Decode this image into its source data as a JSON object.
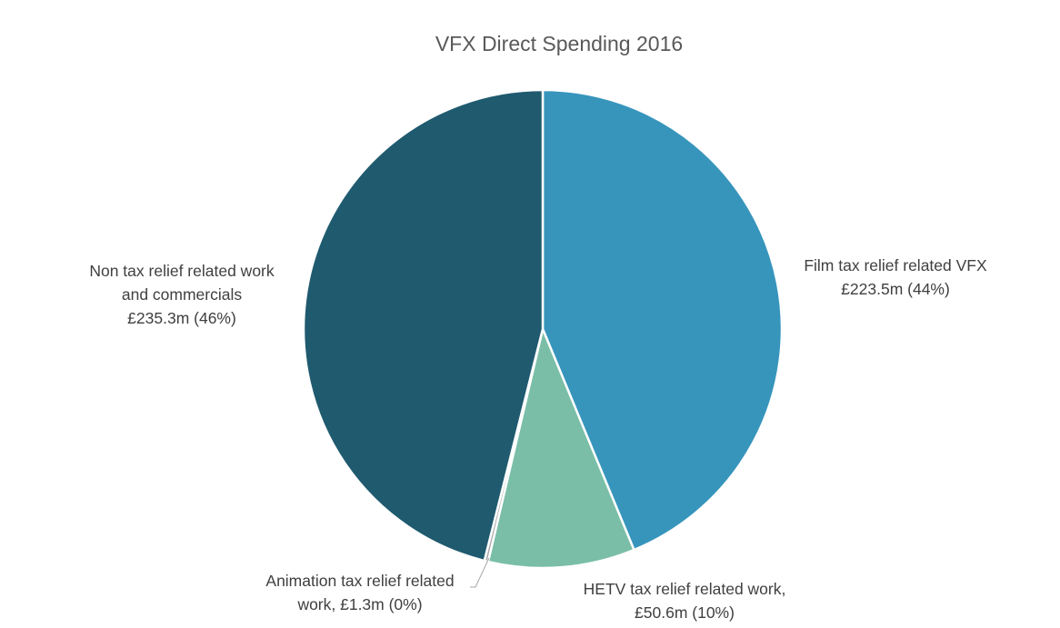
{
  "chart_data": {
    "type": "pie",
    "title": "VFX Direct Spending 2016",
    "slices": [
      {
        "name": "Film tax relief related VFX",
        "value": 223.5,
        "percent": 44,
        "label_lines": [
          "Film tax relief related VFX",
          "£223.5m (44%)"
        ],
        "color": "#3795bc"
      },
      {
        "name": "HETV tax relief related work",
        "value": 50.6,
        "percent": 10,
        "label_lines": [
          "HETV tax relief related work,",
          "£50.6m (10%)"
        ],
        "color": "#7abea8"
      },
      {
        "name": "Animation tax relief related work",
        "value": 1.3,
        "percent": 0,
        "label_lines": [
          "Animation tax relief related",
          "work, £1.3m (0%)"
        ],
        "color": "#a6a6a6"
      },
      {
        "name": "Non tax relief related work and commercials",
        "value": 235.3,
        "percent": 46,
        "label_lines": [
          "Non tax relief related work",
          "and commercials",
          "£235.3m (46%)"
        ],
        "color": "#1f5a6f"
      }
    ],
    "start_angle": "12 o'clock",
    "direction": "clockwise",
    "legend": "none"
  }
}
